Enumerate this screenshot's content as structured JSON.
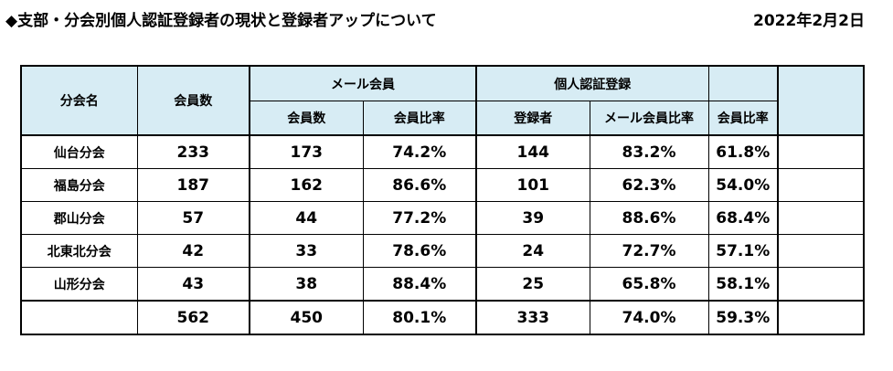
{
  "title": "◆支部・分会別個人認証登録者の現状と登録者アップについて",
  "date": "2022年2月2日",
  "headers": {
    "branch": "分会名",
    "members": "会員数",
    "mail_group": "メール会員",
    "mail_members": "会員数",
    "mail_ratio": "会員比率",
    "auth_group": "個人認証登録",
    "registered": "登録者",
    "mail_member_ratio": "メール会員比率",
    "member_ratio": "会員比率"
  },
  "rows": [
    {
      "name": "仙台分会",
      "members": "233",
      "mail_members": "173",
      "mail_ratio": "74.2%",
      "registered": "144",
      "mail_member_ratio": "83.2%",
      "member_ratio": "61.8%"
    },
    {
      "name": "福島分会",
      "members": "187",
      "mail_members": "162",
      "mail_ratio": "86.6%",
      "registered": "101",
      "mail_member_ratio": "62.3%",
      "member_ratio": "54.0%"
    },
    {
      "name": "郡山分会",
      "members": "57",
      "mail_members": "44",
      "mail_ratio": "77.2%",
      "registered": "39",
      "mail_member_ratio": "88.6%",
      "member_ratio": "68.4%"
    },
    {
      "name": "北東北分会",
      "members": "42",
      "mail_members": "33",
      "mail_ratio": "78.6%",
      "registered": "24",
      "mail_member_ratio": "72.7%",
      "member_ratio": "57.1%"
    },
    {
      "name": "山形分会",
      "members": "43",
      "mail_members": "38",
      "mail_ratio": "88.4%",
      "registered": "25",
      "mail_member_ratio": "65.8%",
      "member_ratio": "58.1%"
    }
  ],
  "total": {
    "name": "",
    "members": "562",
    "mail_members": "450",
    "mail_ratio": "80.1%",
    "registered": "333",
    "mail_member_ratio": "74.0%",
    "member_ratio": "59.3%"
  },
  "colors": {
    "header_bg": "#d7ecf4"
  }
}
